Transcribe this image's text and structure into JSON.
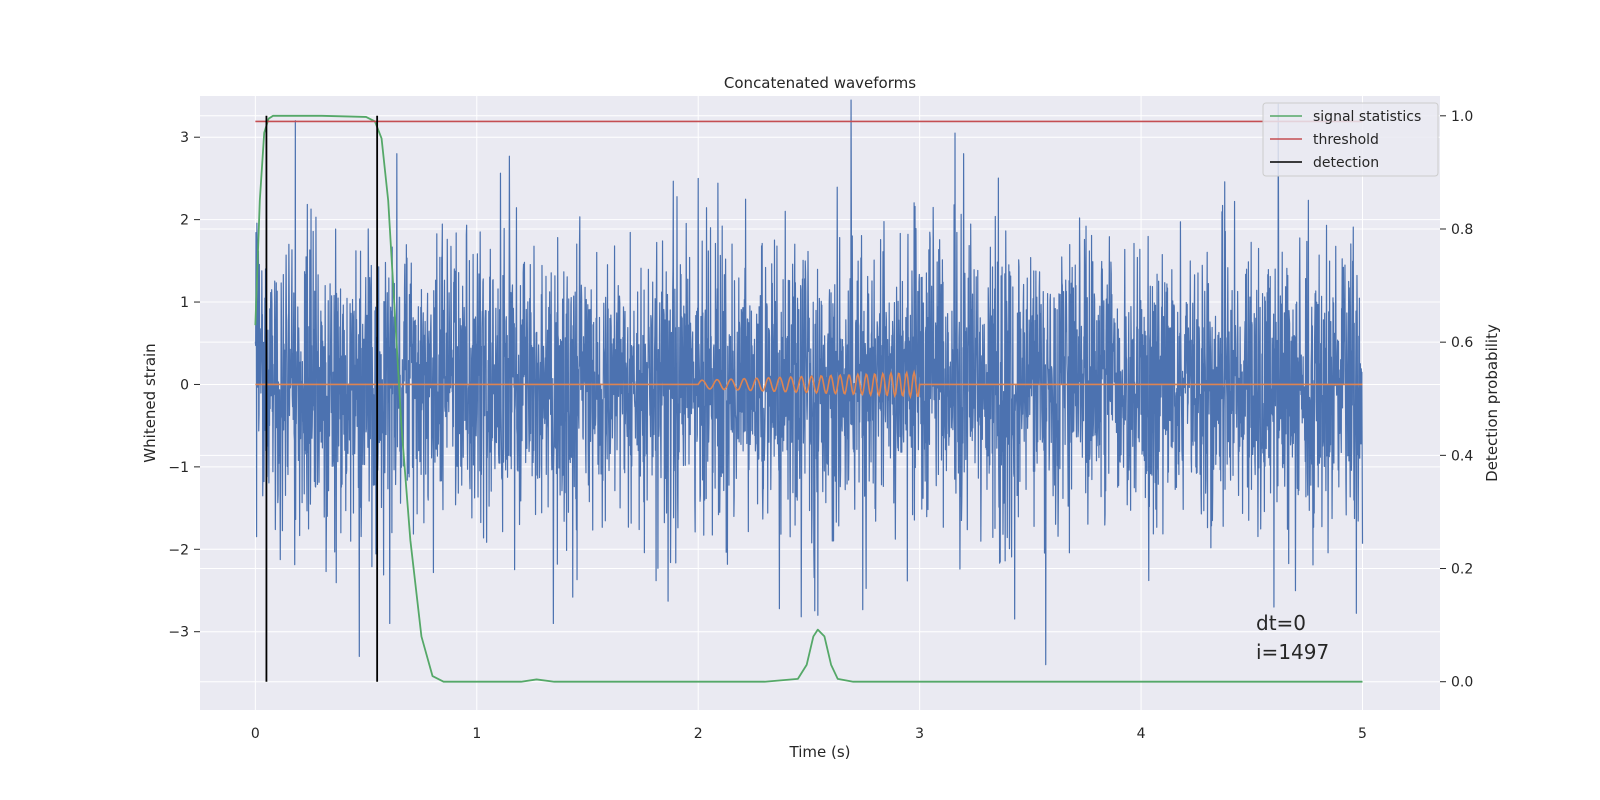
{
  "chart_data": {
    "type": "line",
    "title": "Concatenated waveforms",
    "xlabel": "Time (s)",
    "ylabel": "Whitened strain",
    "y2label": "Detection probability",
    "xlim": [
      -0.25,
      5.35
    ],
    "ylim": [
      -3.95,
      3.5
    ],
    "y2lim": [
      -0.05,
      1.035
    ],
    "x_ticks": [
      0,
      1,
      2,
      3,
      4,
      5
    ],
    "x_tick_labels": [
      "0",
      "1",
      "2",
      "3",
      "4",
      "5"
    ],
    "y_ticks": [
      -3,
      -2,
      -1,
      0,
      1,
      2,
      3
    ],
    "y_tick_labels": [
      "−3",
      "−2",
      "−1",
      "0",
      "1",
      "2",
      "3"
    ],
    "y2_ticks": [
      0.0,
      0.2,
      0.4,
      0.6,
      0.8,
      1.0
    ],
    "y2_tick_labels": [
      "0.0",
      "0.2",
      "0.4",
      "0.6",
      "0.8",
      "1.0"
    ],
    "grid": true,
    "legend_position": "top-right",
    "legend": [
      "signal statistics",
      "threshold",
      "detection"
    ],
    "colors": {
      "noise": "#4c72b0",
      "waveform": "#dd8452",
      "signal_statistics": "#55a868",
      "threshold": "#c44e52",
      "detection": "#000000",
      "background": "#eaeaf2",
      "grid": "#ffffff"
    },
    "series": [
      {
        "name": "whitened strain",
        "axis": "left",
        "style": "random noise, std ~0.9, extremes from about -3.6 to 3.45",
        "x_range": [
          0,
          5
        ],
        "peaks": [
          [
            0.18,
            3.2
          ],
          [
            2.69,
            3.45
          ],
          [
            2.0,
            2.5
          ],
          [
            3.16,
            3.05
          ],
          [
            4.62,
            3.4
          ],
          [
            0.47,
            -3.3
          ],
          [
            3.57,
            -3.4
          ],
          [
            4.6,
            -2.7
          ],
          [
            2.54,
            -2.8
          ]
        ]
      },
      {
        "name": "injected waveform",
        "axis": "left",
        "style": "chirp between t=2 and t=3, amplitude growing from ~0.05 to ~0.15",
        "x_range": [
          0,
          5
        ],
        "chirp_start": 2.0,
        "chirp_end": 3.0,
        "amp_start": 0.05,
        "amp_end": 0.15
      },
      {
        "name": "signal statistics",
        "axis": "right",
        "x": [
          0.0,
          0.02,
          0.04,
          0.06,
          0.08,
          0.12,
          0.3,
          0.5,
          0.54,
          0.57,
          0.6,
          0.63,
          0.66,
          0.7,
          0.75,
          0.8,
          0.85,
          1.0,
          1.2,
          1.27,
          1.35,
          1.6,
          2.3,
          2.45,
          2.49,
          2.52,
          2.54,
          2.57,
          2.6,
          2.63,
          2.7,
          3.0,
          4.0,
          5.0
        ],
        "y": [
          0.63,
          0.85,
          0.97,
          0.995,
          1.0,
          1.0,
          1.0,
          0.998,
          0.99,
          0.96,
          0.85,
          0.65,
          0.45,
          0.25,
          0.08,
          0.01,
          0.0,
          0.0,
          0.0,
          0.004,
          0.0,
          0.0,
          0.0,
          0.005,
          0.03,
          0.08,
          0.092,
          0.08,
          0.03,
          0.005,
          0.0,
          0.0,
          0.0,
          0.0
        ]
      },
      {
        "name": "threshold",
        "axis": "right",
        "x": [
          0.0,
          5.0
        ],
        "y": [
          0.99,
          0.99
        ]
      },
      {
        "name": "detection",
        "axis": "right",
        "x": [
          0.05,
          0.55
        ],
        "y_from": 0.0,
        "y_to": 1.0
      }
    ],
    "annotations": [
      "dt=0",
      "i=1497"
    ]
  }
}
